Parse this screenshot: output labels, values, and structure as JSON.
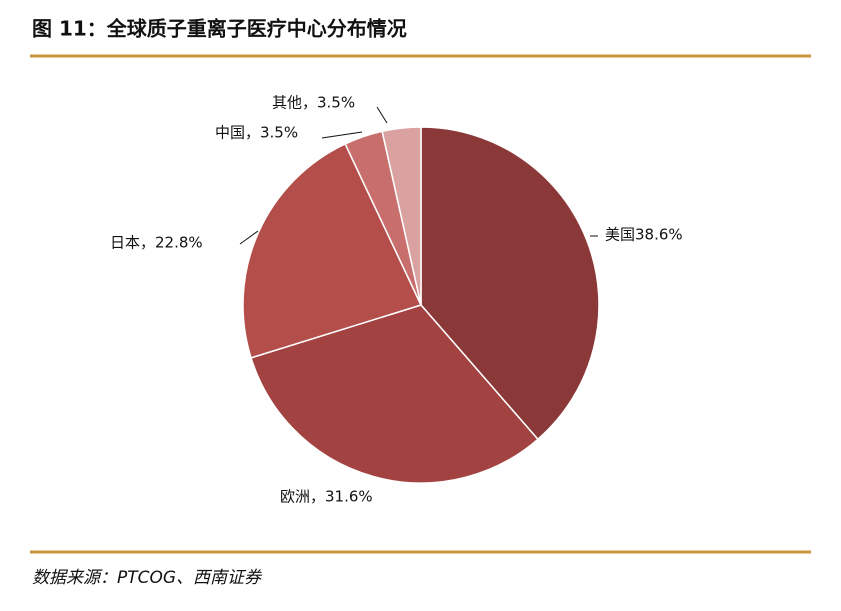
{
  "chart_data": {
    "type": "pie",
    "title": "图 11：全球质子重离子医疗中心分布情况",
    "values": [
      38.6,
      31.6,
      22.8,
      3.5,
      3.5
    ],
    "value_labels": [
      "美国38.6%",
      "欧洲，31.6%",
      "日本，22.8%",
      "中国，3.5%",
      "其他，3.5%"
    ],
    "colors": [
      "#8b3838",
      "#a34341",
      "#b44e4a",
      "#c86f6e",
      "#d9a2a1"
    ],
    "source": "数据来源：PTCOG、西南证券"
  }
}
